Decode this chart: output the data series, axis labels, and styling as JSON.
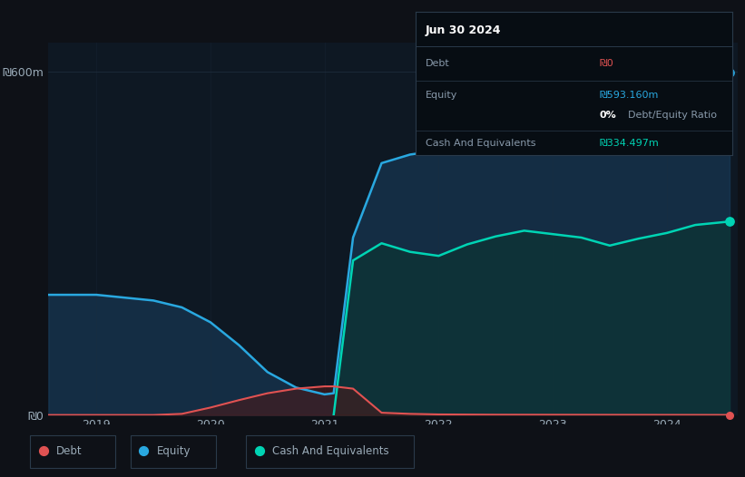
{
  "bg_color": "#0e1117",
  "plot_bg_color": "#0e1823",
  "ylabel_600": "₪600m",
  "ylabel_0": "₪0",
  "x_ticks": [
    "2019",
    "2020",
    "2021",
    "2022",
    "2023",
    "2024"
  ],
  "equity_color": "#29a8e0",
  "debt_color": "#e05252",
  "cash_color": "#00d4b4",
  "equity_fill": "#1a4060",
  "cash_fill": "#0d3535",
  "debt_fill": "#4a1a1a",
  "grid_color": "#1e2d3d",
  "text_color": "#9aabb8",
  "info_box": {
    "title": "Jun 30 2024",
    "debt_label": "Debt",
    "debt_value": "₪0",
    "debt_value_color": "#e05252",
    "equity_label": "Equity",
    "equity_value": "₪593.160m",
    "equity_value_color": "#29a8e0",
    "cash_label": "Cash And Equivalents",
    "cash_value": "₪334.497m",
    "cash_value_color": "#00d4b4",
    "bg": "#070d13",
    "border": "#2a3a4a"
  },
  "equity_x": [
    2018.58,
    2019.0,
    2019.25,
    2019.5,
    2019.75,
    2020.0,
    2020.25,
    2020.5,
    2020.75,
    2021.0,
    2021.08,
    2021.25,
    2021.5,
    2021.75,
    2022.0,
    2022.25,
    2022.5,
    2022.75,
    2023.0,
    2023.25,
    2023.5,
    2023.75,
    2024.0,
    2024.25,
    2024.55
  ],
  "equity_y": [
    210,
    210,
    205,
    200,
    188,
    162,
    122,
    75,
    48,
    36,
    38,
    310,
    440,
    455,
    462,
    470,
    478,
    485,
    492,
    500,
    510,
    520,
    535,
    555,
    598
  ],
  "debt_x": [
    2018.58,
    2019.0,
    2019.5,
    2019.75,
    2020.0,
    2020.25,
    2020.5,
    2020.75,
    2021.0,
    2021.08,
    2021.25,
    2021.5,
    2021.75,
    2022.0,
    2022.5,
    2023.0,
    2023.5,
    2024.0,
    2024.55
  ],
  "debt_y": [
    0,
    0,
    0,
    2,
    13,
    26,
    38,
    46,
    50,
    50,
    46,
    4,
    2,
    1,
    0.5,
    0.4,
    0.3,
    0.2,
    0.1
  ],
  "cash_x": [
    2021.08,
    2021.25,
    2021.5,
    2021.75,
    2022.0,
    2022.25,
    2022.5,
    2022.75,
    2023.0,
    2023.25,
    2023.5,
    2023.75,
    2024.0,
    2024.25,
    2024.55
  ],
  "cash_y": [
    0,
    270,
    300,
    285,
    278,
    298,
    312,
    322,
    316,
    310,
    296,
    308,
    318,
    332,
    338
  ],
  "ylim": [
    0,
    650
  ],
  "xlim": [
    2018.58,
    2024.62
  ],
  "dot_x": 2024.55,
  "dot_equity_y": 598,
  "dot_cash_y": 338,
  "dot_debt_y": 0.1,
  "legend_items": [
    {
      "label": "Debt",
      "color": "#e05252"
    },
    {
      "label": "Equity",
      "color": "#29a8e0"
    },
    {
      "label": "Cash And Equivalents",
      "color": "#00d4b4"
    }
  ]
}
